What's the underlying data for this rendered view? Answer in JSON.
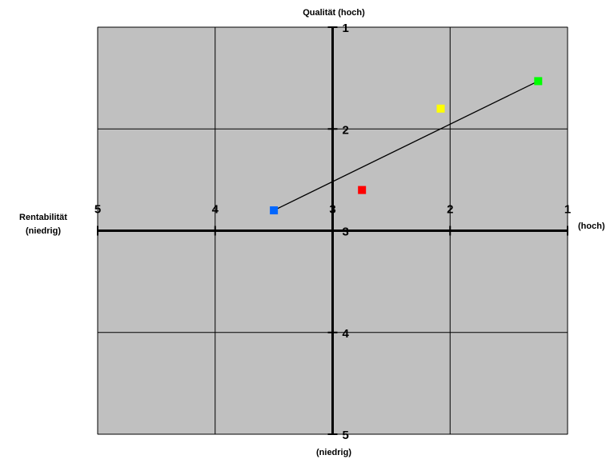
{
  "chart_data": {
    "type": "scatter",
    "title": "",
    "x_axis": {
      "label_top": "Rentabilität",
      "label_bottom": "(niedrig)",
      "right_label": "(hoch)",
      "range": [
        5,
        1
      ],
      "ticks": [
        "5",
        "4",
        "3",
        "2",
        "1"
      ]
    },
    "y_axis": {
      "top_label": "Qualität (hoch)",
      "bottom_label": "(niedrig)",
      "range": [
        1,
        5
      ],
      "ticks": [
        "1",
        "2",
        "3",
        "4",
        "5"
      ]
    },
    "grid": true,
    "background_color": "#c0c0c0",
    "points": [
      {
        "x": 3.5,
        "y": 2.8,
        "color": "#0066ff"
      },
      {
        "x": 2.75,
        "y": 2.6,
        "color": "#ff0000"
      },
      {
        "x": 2.08,
        "y": 1.8,
        "color": "#ffff00"
      },
      {
        "x": 1.25,
        "y": 1.53,
        "color": "#00ff00"
      }
    ],
    "trend_line": {
      "from": [
        3.5,
        2.8
      ],
      "to": [
        1.25,
        1.53
      ],
      "color": "#000000"
    }
  }
}
